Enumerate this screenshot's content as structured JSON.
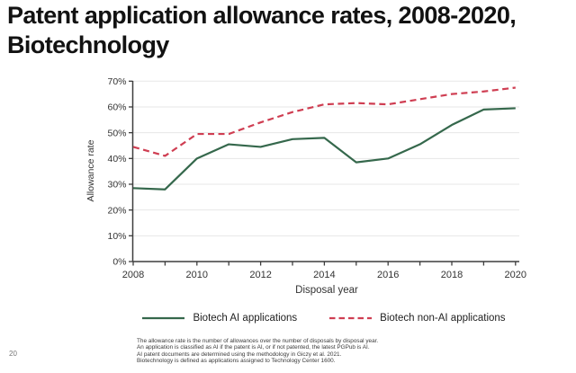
{
  "page": {
    "number": "20"
  },
  "title": {
    "line1": "Patent application allowance rates, 2008-2020,",
    "line2": "Biotechnology"
  },
  "chart_data": {
    "type": "line",
    "title": "",
    "xlabel": "Disposal year",
    "ylabel": "Allowance rate",
    "x": [
      2008,
      2009,
      2010,
      2011,
      2012,
      2013,
      2014,
      2015,
      2016,
      2017,
      2018,
      2019,
      2020
    ],
    "x_tick_labels": [
      "2008",
      "2010",
      "2012",
      "2014",
      "2016",
      "2018",
      "2020"
    ],
    "y_ticks": [
      "0%",
      "10%",
      "20%",
      "30%",
      "40%",
      "50%",
      "60%",
      "70%"
    ],
    "ylim": [
      0,
      70
    ],
    "grid": "horizontal",
    "legend_position": "bottom",
    "colors": {
      "grid": "#e7e7e7",
      "axis": "#3d3d3d",
      "tick_text": "#333333"
    },
    "series": [
      {
        "name": "Biotech AI applications",
        "style": "solid",
        "color": "#35684c",
        "values": [
          28.5,
          28,
          40,
          45.5,
          44.5,
          47.5,
          48,
          38.5,
          40,
          45.5,
          53,
          59,
          59.5
        ]
      },
      {
        "name": "Biotech non-AI applications",
        "style": "dashed",
        "color": "#cf3e52",
        "values": [
          44.5,
          41,
          49.5,
          49.5,
          54,
          58,
          61,
          61.5,
          61,
          63,
          65,
          66,
          67.5
        ]
      }
    ]
  },
  "footnotes": [
    "The allowance rate is the number of allowances over the number of disposals by disposal year.",
    "An application is classified as AI if the patent is AI, or if not patented, the latest PGPub is AI.",
    "AI patent documents are determined using the methodology in Giczy et al. 2021.",
    "Biotechnology is defined as applications assigned to Technology Center 1600."
  ]
}
